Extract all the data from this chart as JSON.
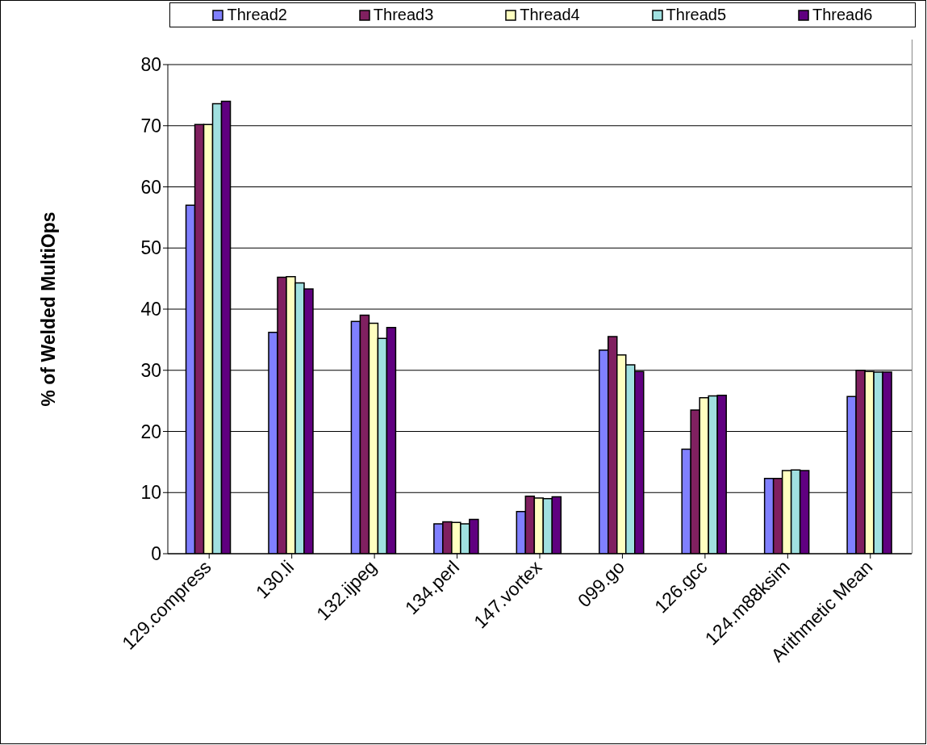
{
  "chart_data": {
    "type": "bar",
    "ylabel": "% of Welded MultiOps",
    "categories": [
      "129.compress",
      "130.li",
      "132.ijpeg",
      "134.perl",
      "147.vortex",
      "099.go",
      "126.gcc",
      "124.m88ksim",
      "Arithmetic Mean"
    ],
    "series": [
      {
        "name": "Thread2",
        "color": "#8080ff",
        "values": [
          57,
          36.2,
          38,
          4.9,
          6.9,
          33.3,
          17.1,
          12.3,
          25.7
        ]
      },
      {
        "name": "Thread3",
        "color": "#802060",
        "values": [
          70.2,
          45.2,
          39,
          5.2,
          9.4,
          35.5,
          23.5,
          12.3,
          30
        ]
      },
      {
        "name": "Thread4",
        "color": "#ffffc0",
        "values": [
          70.2,
          45.3,
          37.7,
          5.1,
          9.1,
          32.5,
          25.5,
          13.6,
          29.8
        ]
      },
      {
        "name": "Thread5",
        "color": "#a0e0e0",
        "values": [
          73.6,
          44.3,
          35.2,
          4.9,
          9,
          30.9,
          25.8,
          13.7,
          29.7
        ]
      },
      {
        "name": "Thread6",
        "color": "#600080",
        "values": [
          74,
          43.3,
          37,
          5.6,
          9.3,
          29.8,
          25.9,
          13.6,
          29.7
        ]
      }
    ],
    "ylim": [
      0,
      80
    ],
    "yticks": [
      0,
      10,
      20,
      30,
      40,
      50,
      60,
      70,
      80
    ],
    "grid": "y",
    "legend": "top"
  }
}
